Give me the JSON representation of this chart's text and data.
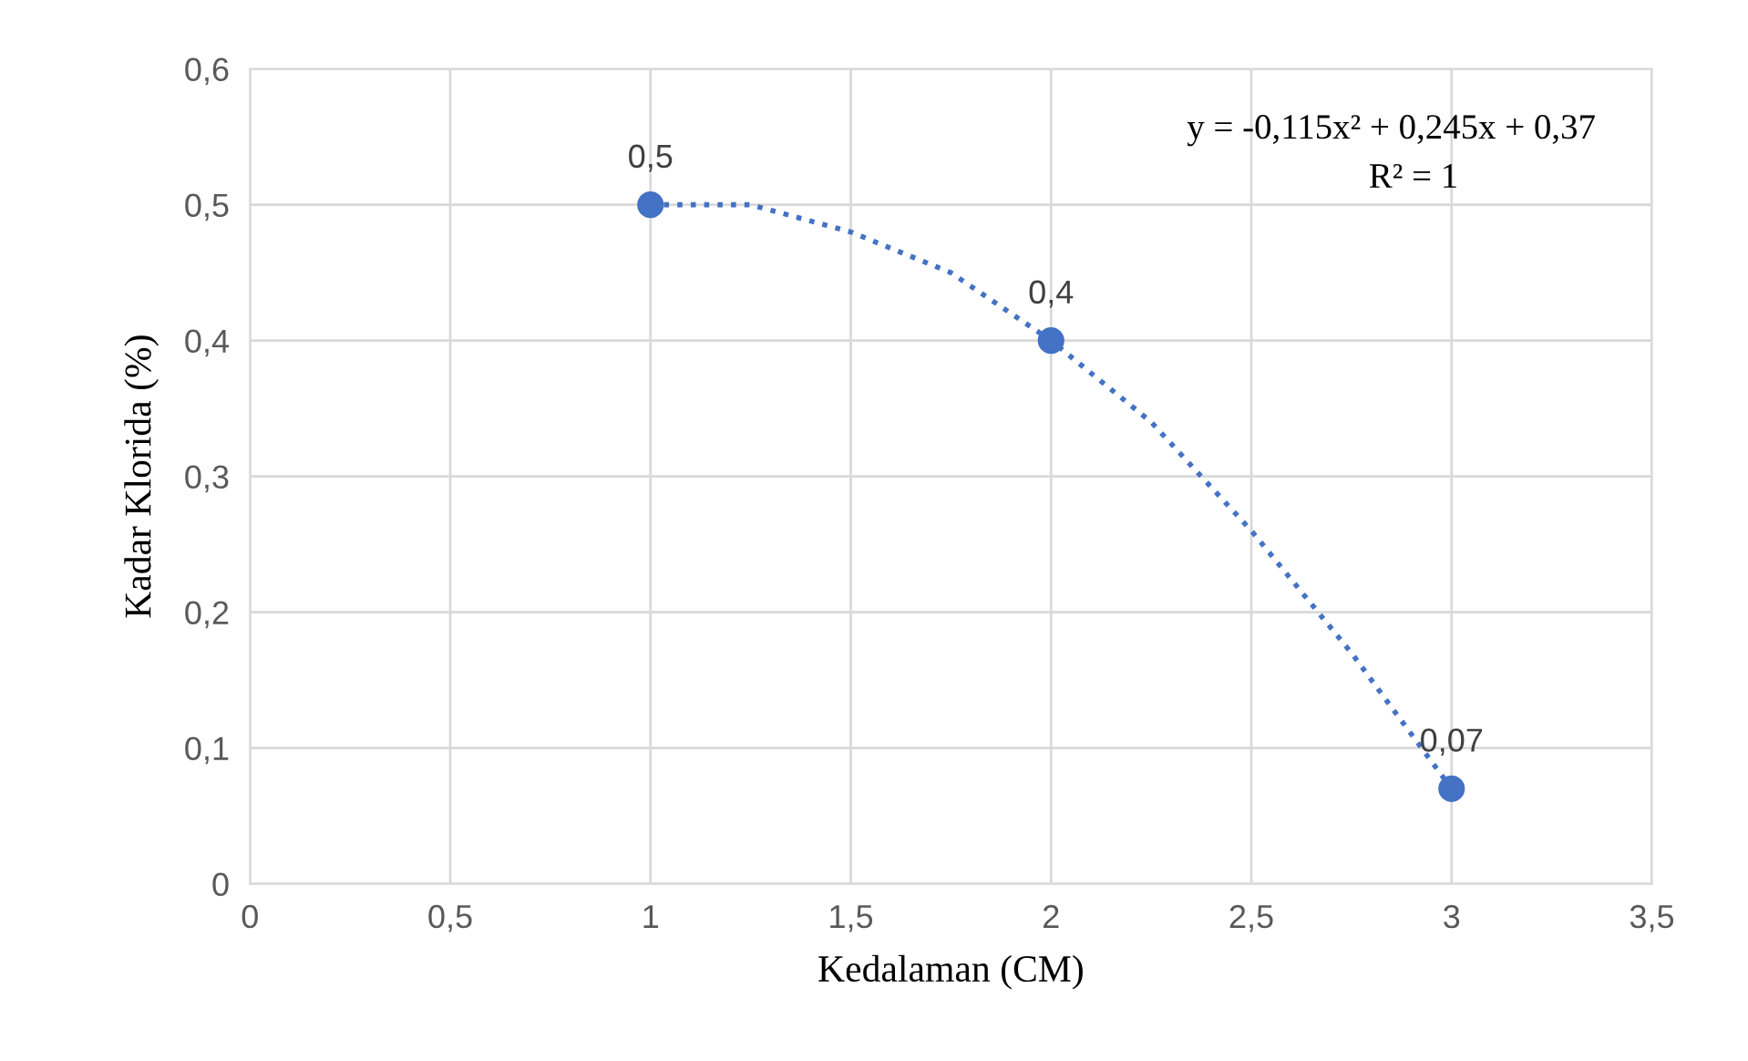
{
  "chart_data": {
    "type": "scatter",
    "xlabel": "Kedalaman (CM)",
    "ylabel": "Kadar Klorida (%)",
    "series": [
      {
        "type": "line",
        "color": "#4472c4",
        "line_style": "dotted",
        "marker": "none",
        "x": [
          1,
          1.25,
          1.5,
          1.75,
          2,
          2.25,
          2.5,
          2.75,
          3
        ],
        "values": [
          0.5,
          0.5,
          0.48,
          0.45,
          0.4,
          0.34,
          0.26,
          0.17,
          0.07
        ]
      },
      {
        "color": "#4472c4",
        "marker": "circle",
        "x": [
          1,
          2,
          3
        ],
        "values": [
          0.5,
          0.4,
          0.07
        ],
        "value_labels": [
          "0,5",
          "0,4",
          "0,07"
        ]
      }
    ],
    "xlim": [
      0,
      3.5
    ],
    "ylim": [
      0,
      0.6
    ],
    "xticks": [
      0,
      {
        "value": 0.5,
        "label": "0,5"
      },
      1,
      {
        "value": 1.5,
        "label": "1,5"
      },
      2,
      {
        "value": 2.5,
        "label": "2,5"
      },
      3,
      {
        "value": 3.5,
        "label": "3,5"
      }
    ],
    "yticks": [
      0,
      {
        "value": 0.1,
        "label": "0,1"
      },
      {
        "value": 0.2,
        "label": "0,2"
      },
      {
        "value": 0.3,
        "label": "0,3"
      },
      {
        "value": 0.4,
        "label": "0,4"
      },
      {
        "value": 0.5,
        "label": "0,5"
      },
      {
        "value": 0.6,
        "label": "0,6"
      }
    ],
    "grid": true,
    "annotations": [
      "y = -0,115x² + 0,245x + 0,37",
      "R² = 1"
    ]
  }
}
